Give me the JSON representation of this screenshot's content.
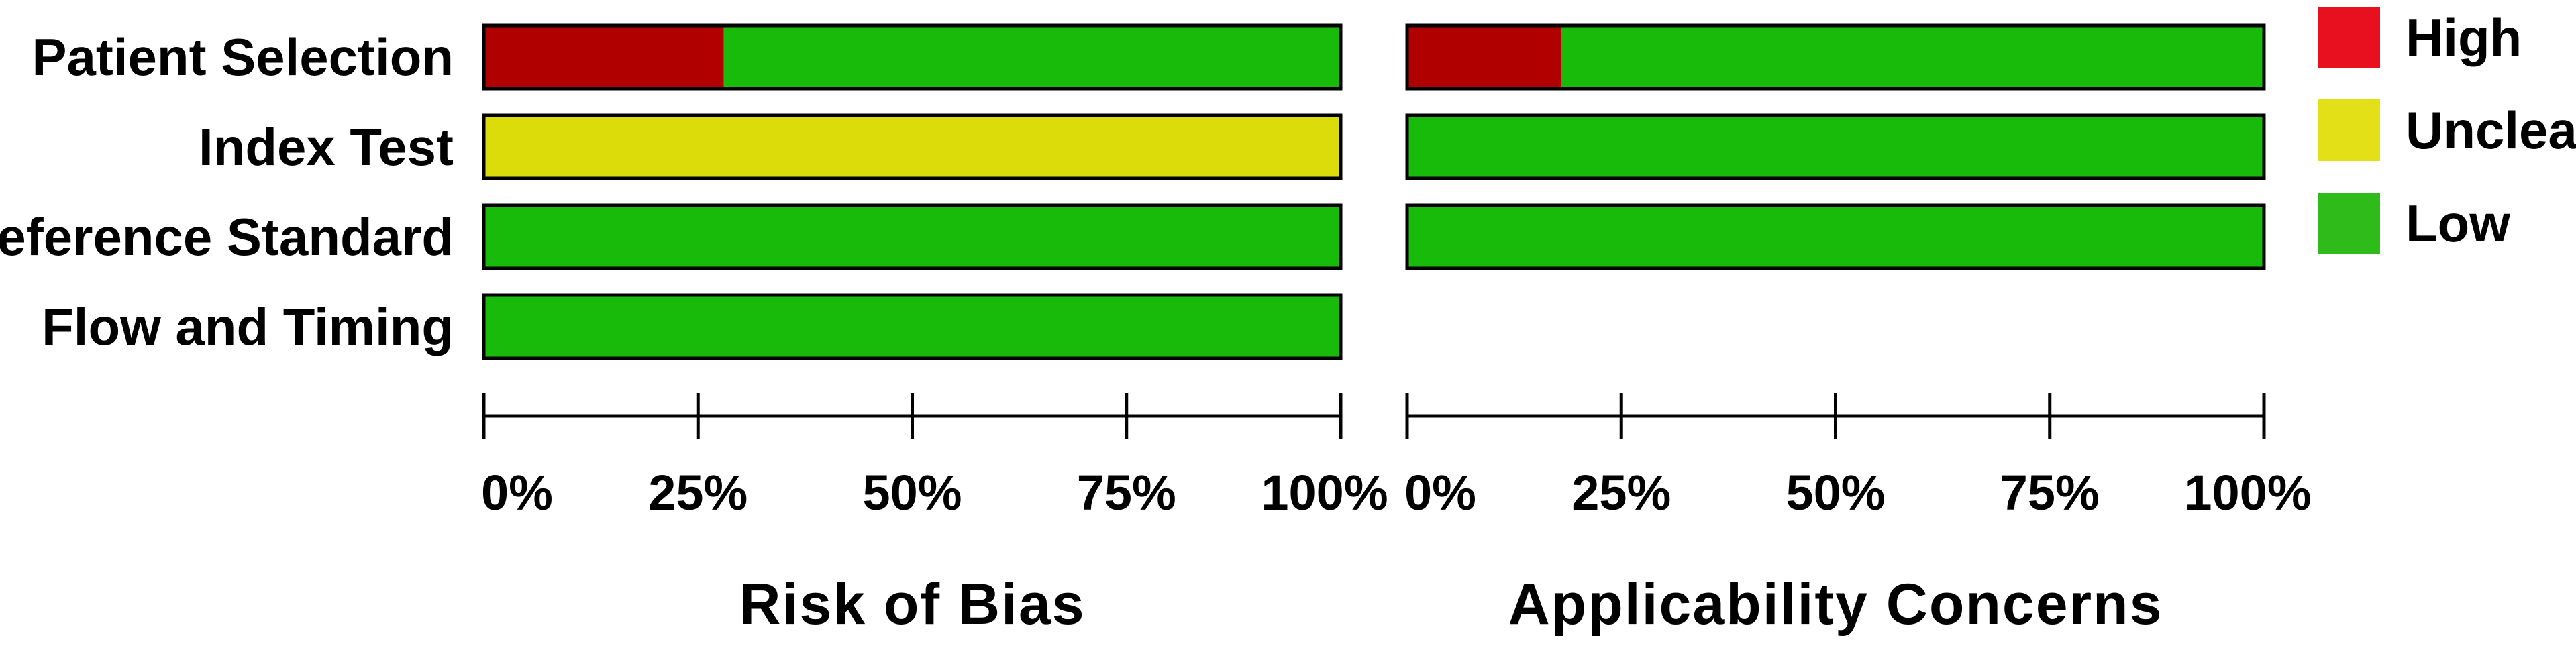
{
  "chart_data": {
    "type": "bar",
    "orientation": "horizontal-stacked-percent",
    "categories": [
      "Patient Selection",
      "Index Test",
      "Reference Standard",
      "Flow and Timing"
    ],
    "tick_labels": [
      "0%",
      "25%",
      "50%",
      "75%",
      "100%"
    ],
    "xlim": [
      0,
      100
    ],
    "legend": {
      "placement": "right",
      "entries": [
        {
          "key": "high",
          "label": "High",
          "swatch_color": "#e8101f"
        },
        {
          "key": "unclear",
          "label": "Unclear",
          "swatch_color": "#e3e018"
        },
        {
          "key": "low",
          "label": "Low",
          "swatch_color": "#2fbb1a"
        }
      ]
    },
    "bar_colors": {
      "high": "#b00000",
      "unclear": "#dcdc0a",
      "low": "#18bb0a"
    },
    "panels": [
      {
        "title": "Risk of Bias",
        "rows": [
          {
            "category": "Patient Selection",
            "segments": [
              {
                "key": "high",
                "value": 28
              },
              {
                "key": "low",
                "value": 72
              }
            ]
          },
          {
            "category": "Index Test",
            "segments": [
              {
                "key": "unclear",
                "value": 100
              }
            ]
          },
          {
            "category": "Reference Standard",
            "segments": [
              {
                "key": "low",
                "value": 100
              }
            ]
          },
          {
            "category": "Flow and Timing",
            "segments": [
              {
                "key": "low",
                "value": 100
              }
            ]
          }
        ]
      },
      {
        "title": "Applicability Concerns",
        "rows": [
          {
            "category": "Patient Selection",
            "segments": [
              {
                "key": "high",
                "value": 18
              },
              {
                "key": "low",
                "value": 82
              }
            ]
          },
          {
            "category": "Index Test",
            "segments": [
              {
                "key": "low",
                "value": 100
              }
            ]
          },
          {
            "category": "Reference Standard",
            "segments": [
              {
                "key": "low",
                "value": 100
              }
            ]
          }
        ]
      }
    ]
  }
}
